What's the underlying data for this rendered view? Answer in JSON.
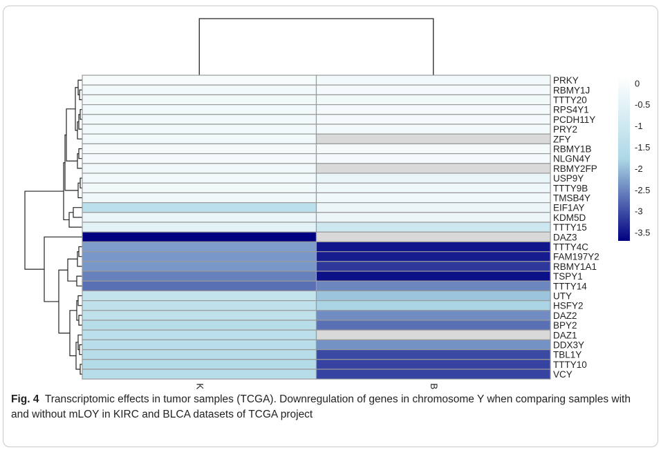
{
  "chart_data": {
    "type": "heatmap",
    "columns": [
      "KIRC",
      "BLCA"
    ],
    "rows": [
      "PRKY",
      "RBMY1J",
      "TTTY20",
      "RPS4Y1",
      "PCDH11Y",
      "PRY2",
      "ZFY",
      "RBMY1B",
      "NLGN4Y",
      "RBMY2FP",
      "USP9Y",
      "TTTY9B",
      "TMSB4Y",
      "EIF1AY",
      "KDM5D",
      "TTTY15",
      "DAZ3",
      "TTTY4C",
      "FAM197Y2",
      "RBMY1A1",
      "TSPY1",
      "TTTY14",
      "UTY",
      "HSFY2",
      "DAZ2",
      "BPY2",
      "DAZ1",
      "DDX3Y",
      "TBL1Y",
      "TTTY10",
      "VCY"
    ],
    "values": [
      [
        -0.05,
        -0.15
      ],
      [
        -0.15,
        -0.1
      ],
      [
        -0.15,
        -0.15
      ],
      [
        -0.15,
        -0.1
      ],
      [
        -0.15,
        -0.1
      ],
      [
        -0.15,
        -0.15
      ],
      [
        -0.15,
        null
      ],
      [
        -0.1,
        -0.1
      ],
      [
        -0.1,
        -0.1
      ],
      [
        -0.2,
        null
      ],
      [
        -0.15,
        -0.35
      ],
      [
        -0.15,
        -0.25
      ],
      [
        -0.2,
        -0.2
      ],
      [
        -1.45,
        -0.3
      ],
      [
        -0.35,
        -0.3
      ],
      [
        -0.5,
        -1.05
      ],
      [
        -3.7,
        null
      ],
      [
        -2.3,
        -3.5
      ],
      [
        -2.35,
        -3.45
      ],
      [
        -2.35,
        -3.2
      ],
      [
        -2.55,
        -3.55
      ],
      [
        -2.7,
        -2.5
      ],
      [
        -1.25,
        -1.95
      ],
      [
        -1.35,
        -1.8
      ],
      [
        -1.35,
        -2.45
      ],
      [
        -1.55,
        -2.7
      ],
      [
        -1.45,
        null
      ],
      [
        -1.5,
        -2.4
      ],
      [
        -1.55,
        -3.05
      ],
      [
        -1.6,
        -3.1
      ],
      [
        -1.55,
        -3.1
      ]
    ],
    "colorbar": {
      "ticks": [
        "0",
        "-0.5",
        "-1",
        "-1.5",
        "-2",
        "-2.5",
        "-3",
        "-3.5"
      ],
      "min": -3.7,
      "max": 0.15,
      "low_color": "#000080",
      "mid_color": "#add8e6",
      "high_color": "#ffffff",
      "na_color": "#d9d9d9"
    },
    "row_dendrogram": true,
    "column_dendrogram": true,
    "legend": "right"
  },
  "caption": {
    "label": "Fig. 4",
    "text": "Transcriptomic effects in tumor samples (TCGA). Downregulation of genes in chromosome Y when comparing samples with and without mLOY in KIRC and BLCA datasets of TCGA project"
  }
}
